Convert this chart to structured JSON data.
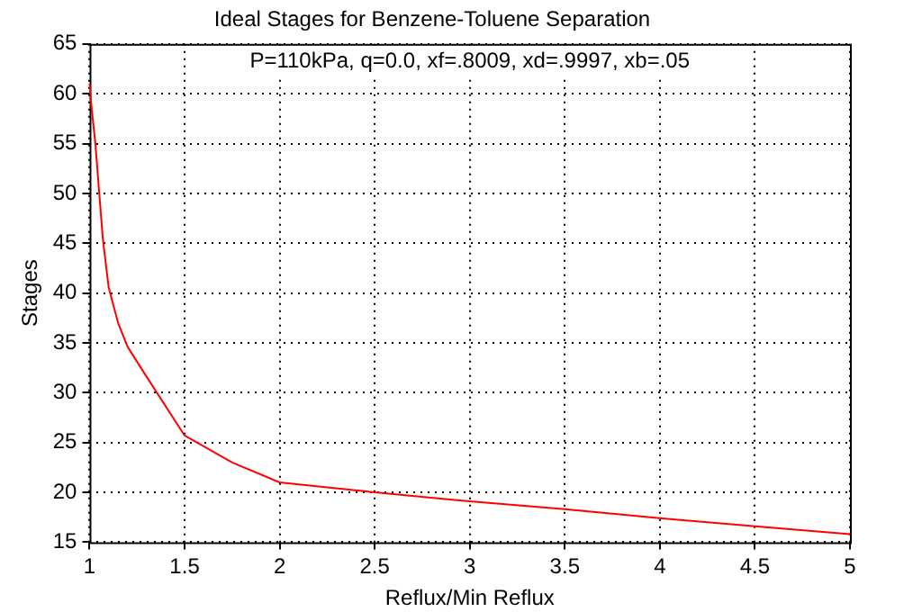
{
  "chart_data": {
    "type": "line",
    "title": "Ideal Stages for Benzene-Toluene Separation",
    "xlabel": "Reflux/Min Reflux",
    "ylabel": "Stages",
    "annotations": [
      "P=110kPa, q=0.0, xf=.8009, xd=.9997, xb=.05"
    ],
    "series": [
      {
        "color": "#ff0000",
        "x": [
          1.0,
          1.01,
          1.03,
          1.05,
          1.07,
          1.1,
          1.15,
          1.2,
          1.3,
          1.5,
          1.75,
          2.0,
          2.5,
          3.0,
          3.5,
          4.0,
          4.5,
          5.0
        ],
        "values": [
          61,
          58.7,
          55.1,
          50.2,
          45.4,
          40.6,
          37,
          34.6,
          31.6,
          25.7,
          23,
          21,
          20,
          19.1,
          18.3,
          17.4,
          16.6,
          15.8
        ]
      }
    ],
    "xlim": [
      1,
      5
    ],
    "xticks": [
      1,
      1.5,
      2,
      2.5,
      3,
      3.5,
      4,
      4.5,
      5
    ],
    "ylim": [
      15,
      65
    ],
    "yticks": [
      15,
      20,
      25,
      30,
      35,
      40,
      45,
      50,
      55,
      60,
      65
    ],
    "grid": true,
    "legend": false,
    "marker": "none",
    "line_style": "solid"
  }
}
